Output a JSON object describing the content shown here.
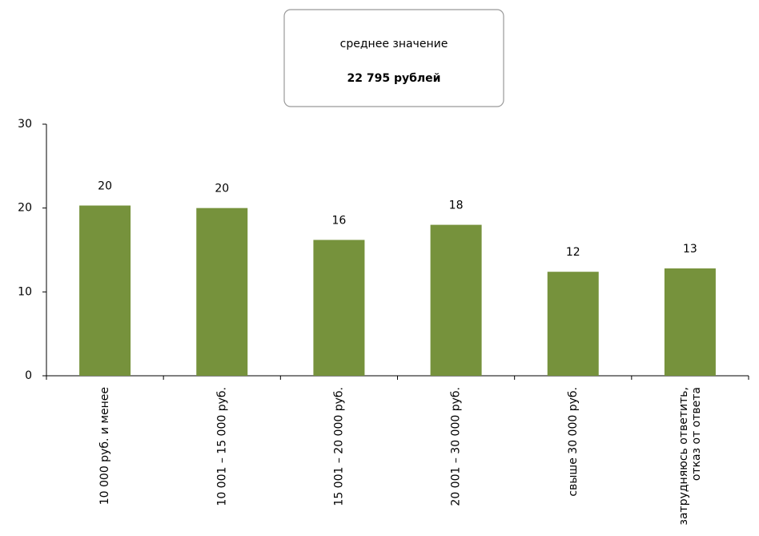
{
  "chart_data": {
    "type": "bar",
    "annotations": [
      "среднее значение",
      "22 795 рублей"
    ],
    "categories": [
      "10 000 руб. и менее",
      "10 001 – 15 000 руб.",
      "15 001 – 20 000 руб.",
      "20 001 – 30 000 руб.",
      "свыше 30 000 руб.",
      "затрудняюсь ответить,\nотказ от ответа"
    ],
    "values": [
      20.3,
      20,
      16.2,
      18,
      12.4,
      12.8
    ],
    "value_labels": [
      "20",
      "20",
      "16",
      "18",
      "12",
      "13"
    ],
    "color": "#76923c",
    "ylim": [
      0,
      30
    ],
    "yticks": [
      0,
      10,
      20,
      30
    ],
    "grid": false
  }
}
